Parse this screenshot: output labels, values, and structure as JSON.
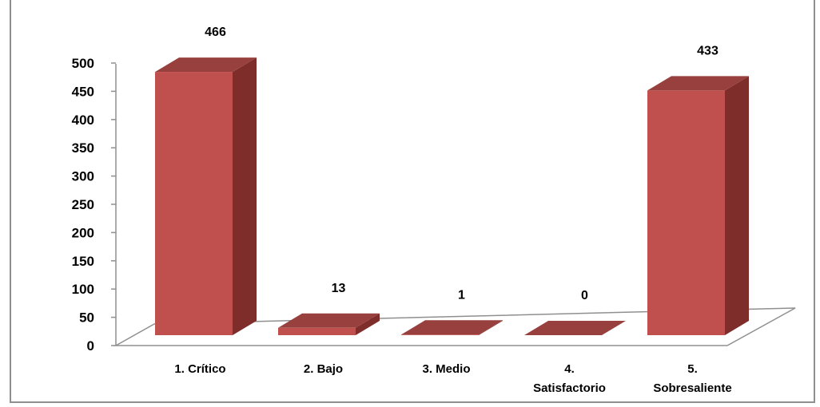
{
  "chart_data": {
    "type": "bar",
    "style": "3d-column",
    "title": "",
    "xlabel": "",
    "ylabel": "",
    "categories": [
      "1. Crítico",
      "2. Bajo",
      "3. Medio",
      "4. Satisfactorio",
      "5. Sobresaliente"
    ],
    "category_lines": [
      [
        "1. Crítico"
      ],
      [
        "2. Bajo"
      ],
      [
        "3. Medio"
      ],
      [
        "4.",
        "Satisfactorio"
      ],
      [
        "5.",
        "Sobresaliente"
      ]
    ],
    "values": [
      466,
      13,
      1,
      0,
      433
    ],
    "data_labels": [
      "466",
      "13",
      "1",
      "0",
      "433"
    ],
    "ylim": [
      0,
      500
    ],
    "yticks": [
      0,
      50,
      100,
      150,
      200,
      250,
      300,
      350,
      400,
      450,
      500
    ],
    "grid": false,
    "legend": "none",
    "colors": {
      "bar_front": "#C0504D",
      "bar_side": "#7F2D2B",
      "bar_top": "#98403D",
      "axis": "#8f8f8f"
    }
  }
}
